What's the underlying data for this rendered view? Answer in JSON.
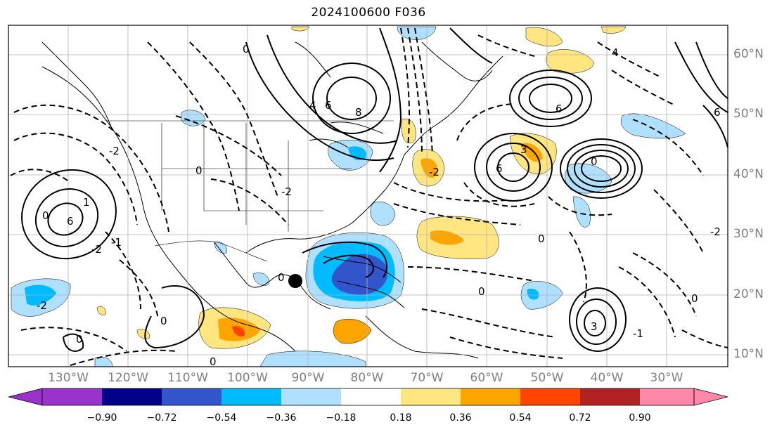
{
  "title": "2024100600 F036",
  "map": {
    "projection": "plate-carree",
    "lon_range": [
      -141,
      -20
    ],
    "lat_range": [
      8,
      65
    ],
    "lat_ticks": [
      "60°N",
      "50°N",
      "40°N",
      "30°N",
      "20°N",
      "10°N"
    ],
    "lon_ticks": [
      "130°W",
      "120°W",
      "110°W",
      "100°W",
      "90°W",
      "80°W",
      "70°W",
      "60°W",
      "50°W",
      "40°W",
      "30°W"
    ],
    "gridlines": true,
    "storm_marker": {
      "lon": -89.5,
      "lat": 21.5,
      "color": "#000000"
    },
    "contour_labels": [
      "0",
      "2",
      "4",
      "6",
      "8",
      "-2",
      "-1",
      "1",
      "3"
    ]
  },
  "colorbar": {
    "orientation": "horizontal",
    "extend": "both",
    "ticks": [
      "−0.90",
      "−0.72",
      "−0.54",
      "−0.36",
      "−0.18",
      "0.18",
      "0.36",
      "0.54",
      "0.72",
      "0.90"
    ],
    "colors": [
      "#9933cc",
      "#000088",
      "#3355cc",
      "#00bbff",
      "#b0e0ff",
      "#ffffff",
      "#ffe680",
      "#ffa500",
      "#ff4500",
      "#b22222",
      "#ff88aa"
    ]
  }
}
